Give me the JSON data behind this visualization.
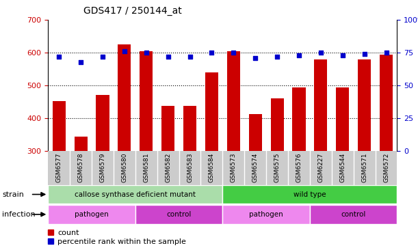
{
  "title": "GDS417 / 250144_at",
  "samples": [
    "GSM6577",
    "GSM6578",
    "GSM6579",
    "GSM6580",
    "GSM6581",
    "GSM6582",
    "GSM6583",
    "GSM6584",
    "GSM6573",
    "GSM6574",
    "GSM6575",
    "GSM6576",
    "GSM6227",
    "GSM6544",
    "GSM6571",
    "GSM6572"
  ],
  "counts": [
    452,
    345,
    472,
    625,
    605,
    438,
    438,
    540,
    605,
    413,
    462,
    495,
    580,
    495,
    580,
    595
  ],
  "percentiles": [
    72,
    68,
    72,
    76,
    75,
    72,
    72,
    75,
    75,
    71,
    72,
    73,
    75,
    73,
    74,
    75
  ],
  "ylim_left": [
    300,
    700
  ],
  "ylim_right": [
    0,
    100
  ],
  "yticks_left": [
    300,
    400,
    500,
    600,
    700
  ],
  "yticks_right": [
    0,
    25,
    50,
    75,
    100
  ],
  "bar_color": "#cc0000",
  "dot_color": "#0000cc",
  "strain_groups": [
    {
      "label": "callose synthase deficient mutant",
      "start": 0,
      "end": 8,
      "color": "#aaddaa"
    },
    {
      "label": "wild type",
      "start": 8,
      "end": 16,
      "color": "#44cc44"
    }
  ],
  "infection_groups": [
    {
      "label": "pathogen",
      "start": 0,
      "end": 4,
      "color": "#ee88ee"
    },
    {
      "label": "control",
      "start": 4,
      "end": 8,
      "color": "#cc44cc"
    },
    {
      "label": "pathogen",
      "start": 8,
      "end": 12,
      "color": "#ee88ee"
    },
    {
      "label": "control",
      "start": 12,
      "end": 16,
      "color": "#cc44cc"
    }
  ],
  "tick_label_color_left": "#cc0000",
  "tick_label_color_right": "#0000cc",
  "fig_width": 6.11,
  "fig_height": 3.66,
  "dpi": 100
}
